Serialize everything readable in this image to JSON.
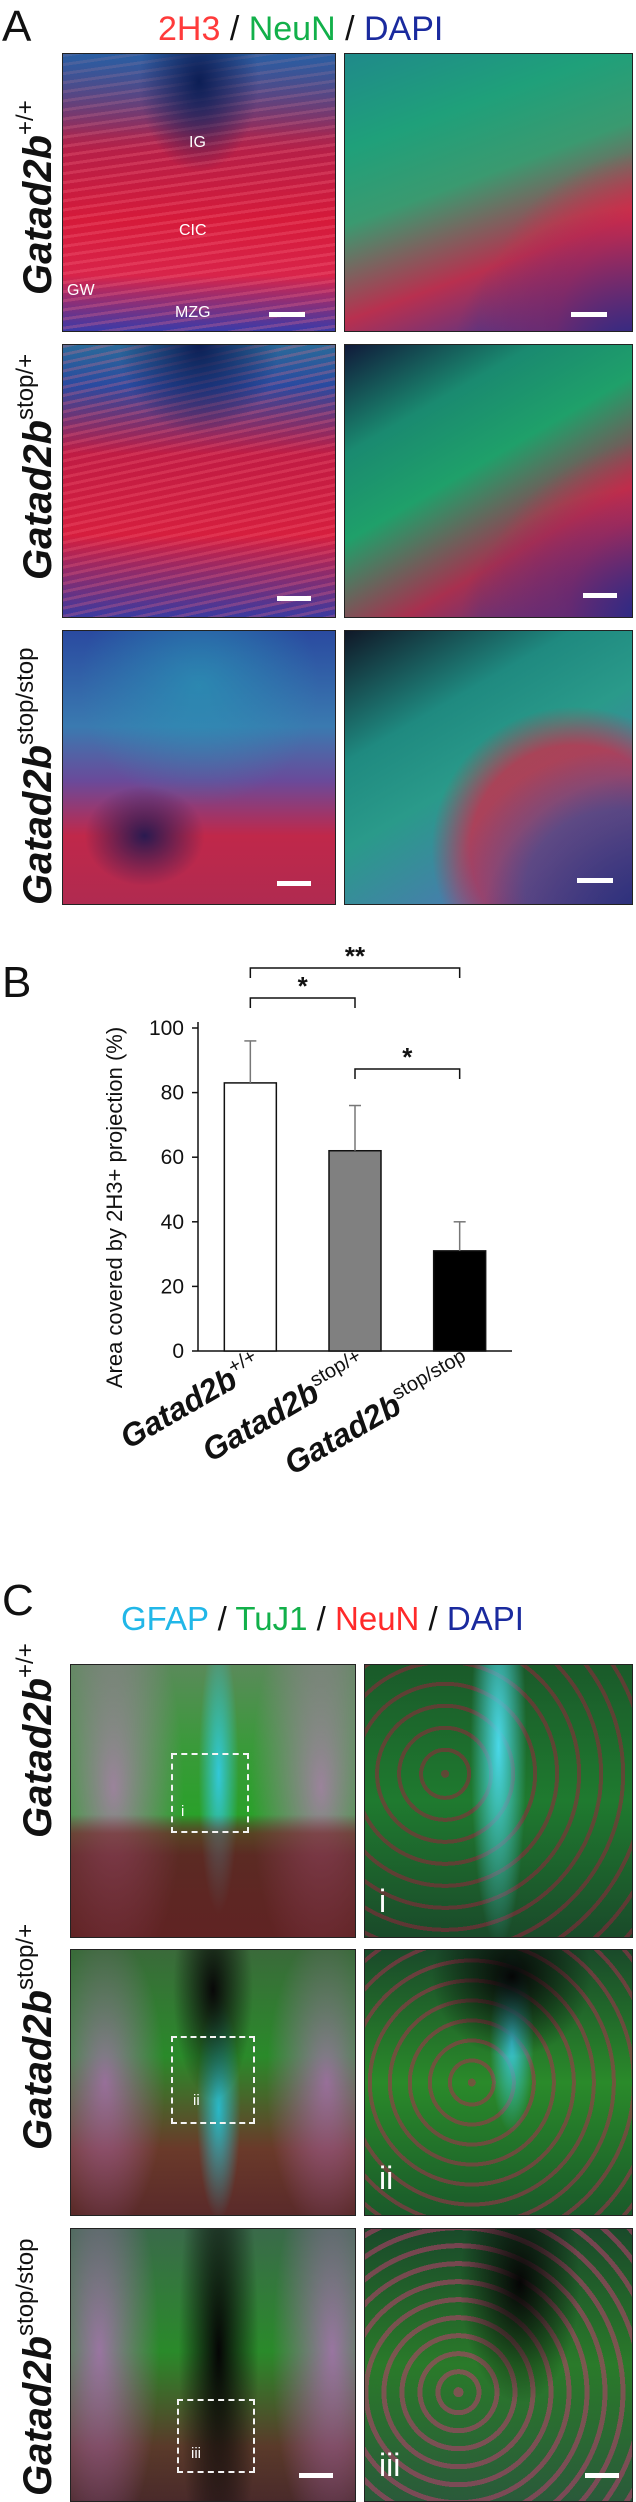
{
  "panel_a": {
    "letter": "A",
    "stains": [
      {
        "text": "2H3",
        "color": "#ff3b3b"
      },
      {
        "text": " / ",
        "color": "#111111"
      },
      {
        "text": "NeuN",
        "color": "#12b04a"
      },
      {
        "text": " / ",
        "color": "#111111"
      },
      {
        "text": "DAPI",
        "color": "#1a2a9e"
      }
    ],
    "rows": [
      {
        "gene": "Gatad2b",
        "sup": "+/+",
        "labels": {
          "ig": "IG",
          "cic": "CIC",
          "gw": "GW",
          "mzg": "MZG"
        }
      },
      {
        "gene": "Gatad2b",
        "sup": "stop/+"
      },
      {
        "gene": "Gatad2b",
        "sup": "stop/stop"
      }
    ]
  },
  "panel_b": {
    "letter": "B"
  },
  "panel_c": {
    "letter": "C",
    "stains": [
      {
        "text": "GFAP",
        "color": "#21b7e8"
      },
      {
        "text": " / ",
        "color": "#111111"
      },
      {
        "text": "TuJ1",
        "color": "#12b04a"
      },
      {
        "text": " / ",
        "color": "#111111"
      },
      {
        "text": "NeuN",
        "color": "#ff2a2a"
      },
      {
        "text": " / ",
        "color": "#111111"
      },
      {
        "text": "DAPI",
        "color": "#1a2a9e"
      }
    ],
    "rows": [
      {
        "gene": "Gatad2b",
        "sup": "+/+",
        "inset": "i"
      },
      {
        "gene": "Gatad2b",
        "sup": "stop/+",
        "inset": "ii"
      },
      {
        "gene": "Gatad2b",
        "sup": "stop/stop",
        "inset": "iii"
      }
    ]
  },
  "chart_data": {
    "type": "bar",
    "categories": [
      "Gatad2b+/+",
      "Gatad2bstop/+",
      "Gatad2bstop/stop"
    ],
    "category_parts": [
      {
        "gene": "Gatad2b",
        "sup": "+/+"
      },
      {
        "gene": "Gatad2b",
        "sup": "stop/+"
      },
      {
        "gene": "Gatad2b",
        "sup": "stop/stop"
      }
    ],
    "values": [
      83,
      62,
      31
    ],
    "errors": [
      13,
      14,
      9
    ],
    "bar_colors": [
      "#ffffff",
      "#808080",
      "#000000"
    ],
    "ylabel": "Area covered by 2H3+ projection (%)",
    "ylim": [
      0,
      100
    ],
    "yticks": [
      0,
      20,
      40,
      60,
      80,
      100
    ],
    "significance": [
      {
        "from": 0,
        "to": 1,
        "label": "*"
      },
      {
        "from": 0,
        "to": 2,
        "label": "**"
      },
      {
        "from": 1,
        "to": 2,
        "label": "*"
      }
    ]
  }
}
